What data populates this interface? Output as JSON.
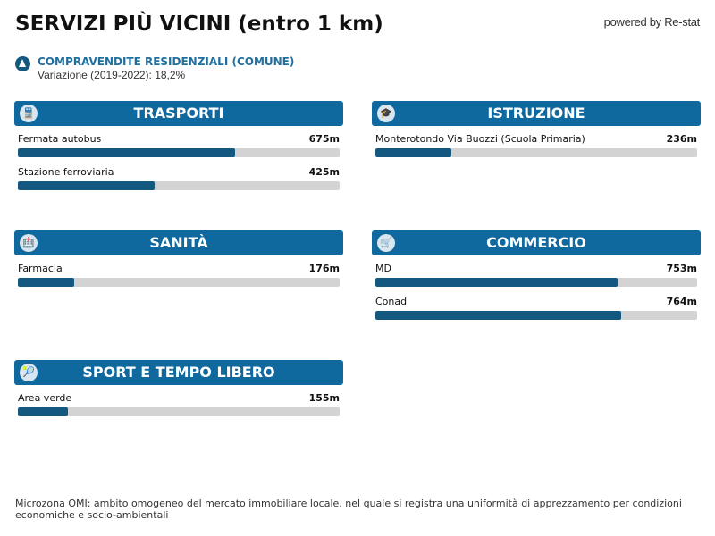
{
  "header": {
    "title": "SERVIZI PIÙ VICINI (entro 1 km)",
    "powered": "powered by Re-stat"
  },
  "trend": {
    "title": "COMPRAVENDITE RESIDENZIALI (COMUNE)",
    "subtitle": "Variazione (2019-2022): 18,2%"
  },
  "max_distance_m": 1000,
  "sections": [
    {
      "title": "TRASPORTI",
      "icon": "train-icon",
      "glyph": "🚆",
      "items": [
        {
          "label": "Fermata autobus",
          "value": "675m",
          "meters": 675
        },
        {
          "label": "Stazione ferroviaria",
          "value": "425m",
          "meters": 425
        }
      ]
    },
    {
      "title": "ISTRUZIONE",
      "icon": "student-icon",
      "glyph": "🎓",
      "items": [
        {
          "label": "Monterotondo Via Buozzi (Scuola Primaria)",
          "value": "236m",
          "meters": 236
        }
      ]
    },
    {
      "title": "SANITÀ",
      "icon": "hospital-icon",
      "glyph": "🏥",
      "items": [
        {
          "label": "Farmacia",
          "value": "176m",
          "meters": 176
        }
      ]
    },
    {
      "title": "COMMERCIO",
      "icon": "cart-icon",
      "glyph": "🛒",
      "items": [
        {
          "label": "MD",
          "value": "753m",
          "meters": 753
        },
        {
          "label": "Conad",
          "value": "764m",
          "meters": 764
        }
      ]
    },
    {
      "title": "SPORT E TEMPO LIBERO",
      "icon": "tennis-icon",
      "glyph": "🎾",
      "items": [
        {
          "label": "Area verde",
          "value": "155m",
          "meters": 155
        }
      ]
    }
  ],
  "footer": {
    "note": "Microzona OMI: ambito omogeneo del mercato immobiliare locale, nel quale si registra una uniformità di apprezzamento per condizioni economiche e socio-ambientali"
  }
}
